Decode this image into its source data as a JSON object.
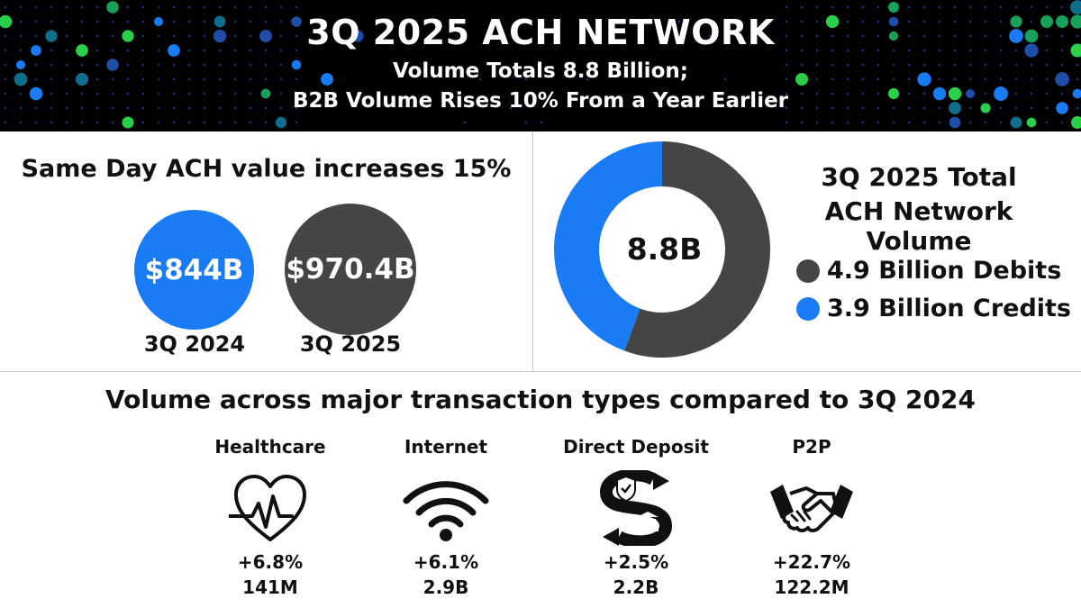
{
  "header": {
    "title": "3Q 2025 ACH NETWORK",
    "subtitle_line1": "Volume Totals 8.8 Billion;",
    "subtitle_line2": "B2B Volume Rises 10% From a Year Earlier"
  },
  "same_day": {
    "heading": "Same Day ACH value increases 15%",
    "items": [
      {
        "value": "$844B",
        "label": "3Q 2024",
        "color": "#1a7cf5"
      },
      {
        "value": "$970.4B",
        "label": "3Q 2025",
        "color": "#454545"
      }
    ]
  },
  "total_volume": {
    "title_line1": "3Q 2025 Total",
    "title_line2": "ACH Network Volume",
    "center_label": "8.8B",
    "legend": [
      {
        "label": "4.9 Billion Debits",
        "color": "#454545"
      },
      {
        "label": "3.9 Billion Credits",
        "color": "#1a7cf5"
      }
    ]
  },
  "transaction_types": {
    "heading": "Volume across major transaction types compared to 3Q 2024",
    "items": [
      {
        "name": "Healthcare",
        "icon": "heart-pulse-icon",
        "change": "+6.8%",
        "volume": "141M"
      },
      {
        "name": "Internet",
        "icon": "wifi-icon",
        "change": "+6.1%",
        "volume": "2.9B"
      },
      {
        "name": "Direct Deposit",
        "icon": "direct-deposit-icon",
        "change": "+2.5%",
        "volume": "2.2B"
      },
      {
        "name": "P2P",
        "icon": "handshake-icon",
        "change": "+22.7%",
        "volume": "122.2M"
      }
    ]
  },
  "chart_data": [
    {
      "type": "pie",
      "title": "3Q 2025 Total ACH Network Volume",
      "categories": [
        "Debits",
        "Credits"
      ],
      "values": [
        4.9,
        3.9
      ],
      "unit": "Billion",
      "colors": [
        "#454545",
        "#1a7cf5"
      ],
      "donut": true
    },
    {
      "type": "bar",
      "title": "Same Day ACH value increases 15%",
      "categories": [
        "3Q 2024",
        "3Q 2025"
      ],
      "values": [
        844,
        970.4
      ],
      "unit": "$B"
    }
  ]
}
